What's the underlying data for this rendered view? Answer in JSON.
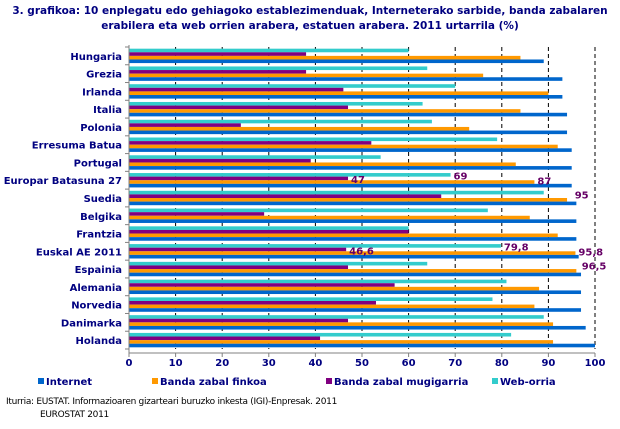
{
  "chart_data": {
    "type": "bar",
    "orientation": "horizontal",
    "title_line1": "3. grafikoa: 10 enplegatu edo gehiagoko establezimenduak, Interneterako sarbide, banda zabalaren",
    "title_line2": "erabilera eta web orrien arabera, estatuen arabera. 2011 urtarrila (%)",
    "categories": [
      "Hungaria",
      "Grezia",
      "Irlanda",
      "Italia",
      "Polonia",
      "Erresuma Batua",
      "Portugal",
      "Europar Batasuna 27",
      "Suedia",
      "Belgika",
      "Frantzia",
      "Euskal AE 2011",
      "Espainia",
      "Alemania",
      "Norvedia",
      "Danimarka",
      "Holanda"
    ],
    "series": [
      {
        "name": "Internet",
        "color": "#0066CC",
        "values": [
          89,
          93,
          93,
          94,
          94,
          95,
          95,
          95,
          96,
          96,
          96,
          96.5,
          97,
          97,
          97,
          98,
          100
        ]
      },
      {
        "name": "Banda zabal finkoa",
        "color": "#FF9900",
        "values": [
          84,
          76,
          90,
          84,
          73,
          92,
          83,
          87,
          94,
          86,
          92,
          95.8,
          96,
          88,
          87,
          91,
          91
        ]
      },
      {
        "name": "Banda zabal mugigarria",
        "color": "#800080",
        "values": [
          38,
          38,
          46,
          47,
          24,
          52,
          39,
          47,
          67,
          29,
          60,
          46.6,
          47,
          57,
          53,
          47,
          41
        ]
      },
      {
        "name": "Web-orria",
        "color": "#33CCCC",
        "values": [
          60,
          64,
          70,
          63,
          65,
          79,
          54,
          69,
          89,
          77,
          60,
          79.8,
          64,
          81,
          78,
          89,
          82
        ]
      }
    ],
    "data_labels": [
      {
        "category": "Europar Batasuna 27",
        "labels": {
          "Web-orria": "69",
          "Banda zabal mugigarria": "47",
          "Banda zabal finkoa": "87",
          "Internet": "95"
        }
      },
      {
        "category": "Euskal AE 2011",
        "labels": {
          "Web-orria": "79,8",
          "Banda zabal mugigarria": "46,6",
          "Banda zabal finkoa": "95,8",
          "Internet": "96,5"
        }
      }
    ],
    "xlim": [
      0,
      100
    ],
    "xticks": [
      "0",
      "10",
      "20",
      "30",
      "40",
      "50",
      "60",
      "70",
      "80",
      "90",
      "100"
    ],
    "grid": "vertical dashed",
    "legend": "bottom"
  },
  "source": {
    "line1": "Iturria: EUSTAT. Informazioaren gizarteari buruzko inkesta (IGI)-Enpresak. 2011",
    "line2": "EUROSTAT 2011"
  }
}
